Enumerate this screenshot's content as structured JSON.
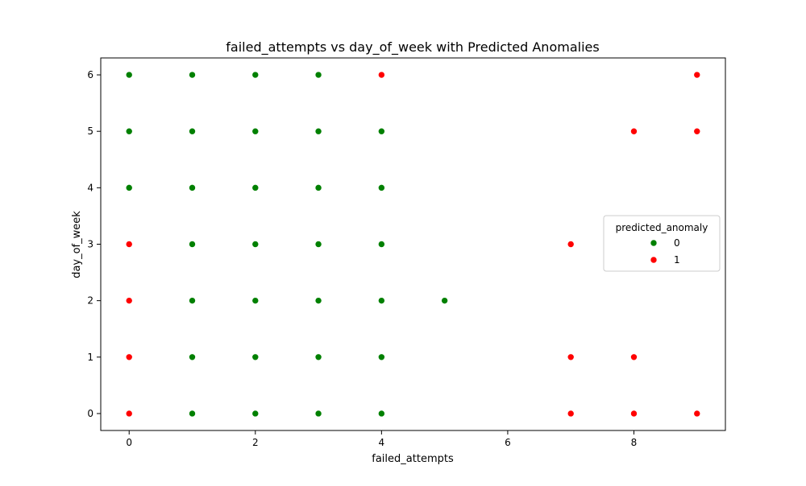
{
  "chart_data": {
    "type": "scatter",
    "title": "failed_attempts vs day_of_week with Predicted Anomalies",
    "xlabel": "failed_attempts",
    "ylabel": "day_of_week",
    "xlim": [
      -0.45,
      9.45
    ],
    "ylim": [
      -0.3,
      6.3
    ],
    "xticks": [
      0,
      2,
      4,
      6,
      8
    ],
    "yticks": [
      0,
      1,
      2,
      3,
      4,
      5,
      6
    ],
    "grid": false,
    "legend": {
      "title": "predicted_anomaly",
      "placement": "center-right",
      "entries": [
        {
          "label": "0",
          "color": "#008000"
        },
        {
          "label": "1",
          "color": "#ff0000"
        }
      ]
    },
    "series": [
      {
        "name": "0",
        "color": "#008000",
        "points": [
          [
            0,
            6
          ],
          [
            1,
            6
          ],
          [
            2,
            6
          ],
          [
            3,
            6
          ],
          [
            0,
            5
          ],
          [
            1,
            5
          ],
          [
            2,
            5
          ],
          [
            3,
            5
          ],
          [
            4,
            5
          ],
          [
            0,
            4
          ],
          [
            1,
            4
          ],
          [
            2,
            4
          ],
          [
            3,
            4
          ],
          [
            4,
            4
          ],
          [
            1,
            3
          ],
          [
            2,
            3
          ],
          [
            3,
            3
          ],
          [
            4,
            3
          ],
          [
            1,
            2
          ],
          [
            2,
            2
          ],
          [
            3,
            2
          ],
          [
            4,
            2
          ],
          [
            5,
            2
          ],
          [
            1,
            1
          ],
          [
            2,
            1
          ],
          [
            3,
            1
          ],
          [
            4,
            1
          ],
          [
            1,
            0
          ],
          [
            2,
            0
          ],
          [
            3,
            0
          ],
          [
            4,
            0
          ]
        ]
      },
      {
        "name": "1",
        "color": "#ff0000",
        "points": [
          [
            4,
            6
          ],
          [
            9,
            6
          ],
          [
            8,
            5
          ],
          [
            9,
            5
          ],
          [
            0,
            3
          ],
          [
            7,
            3
          ],
          [
            0,
            2
          ],
          [
            0,
            1
          ],
          [
            7,
            1
          ],
          [
            8,
            1
          ],
          [
            0,
            0
          ],
          [
            7,
            0
          ],
          [
            8,
            0
          ],
          [
            9,
            0
          ]
        ]
      }
    ]
  }
}
